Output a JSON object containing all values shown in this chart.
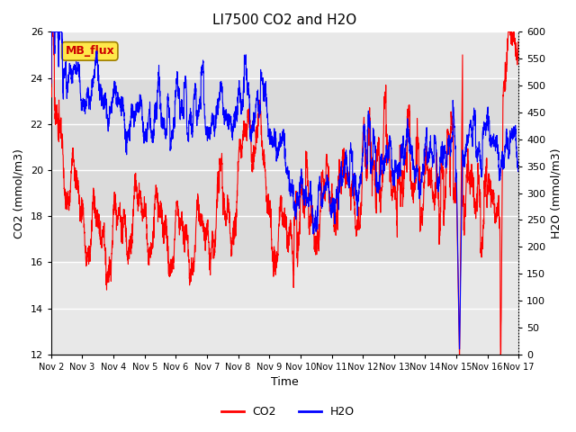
{
  "title": "LI7500 CO2 and H2O",
  "xlabel": "Time",
  "ylabel_left": "CO2 (mmol/m3)",
  "ylabel_right": "H2O (mmol/m3)",
  "co2_ylim": [
    12,
    26
  ],
  "h2o_ylim": [
    0,
    600
  ],
  "num_points": 3000,
  "xtick_labels": [
    "Nov 2",
    "Nov 3",
    "Nov 4",
    "Nov 5",
    "Nov 6",
    "Nov 7",
    "Nov 8",
    "Nov 9",
    "Nov 10",
    "Nov 11",
    "Nov 12",
    "Nov 13",
    "Nov 14",
    "Nov 15",
    "Nov 16",
    "Nov 17"
  ],
  "annotation_text": "MB_flux",
  "co2_color": "#FF0000",
  "h2o_color": "#0000FF",
  "bg_color": "#E8E8E8",
  "title_fontsize": 11,
  "axis_label_fontsize": 9,
  "tick_fontsize": 8,
  "legend_fontsize": 9,
  "grid_color": "#FFFFFF",
  "co2_linewidth": 0.8,
  "h2o_linewidth": 0.8,
  "annotation_facecolor": "#FFE84A",
  "annotation_edgecolor": "#A08000",
  "annotation_text_color": "#CC0000",
  "annotation_fontsize": 9
}
